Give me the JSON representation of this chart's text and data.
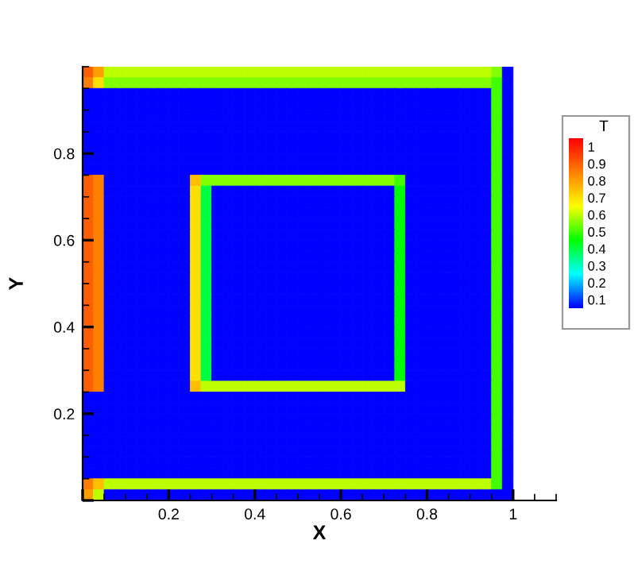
{
  "chart_data": {
    "type": "heatmap",
    "xlabel": "X",
    "ylabel": "Y",
    "clabel": "T",
    "x": [
      0.0125,
      0.0375,
      0.0625,
      0.0875,
      0.1125,
      0.1375,
      0.1625,
      0.1875,
      0.2125,
      0.2375,
      0.2625,
      0.2875,
      0.3125,
      0.3375,
      0.3625,
      0.3875,
      0.4125,
      0.4375,
      0.4625,
      0.4875,
      0.5125,
      0.5375,
      0.5625,
      0.5875,
      0.6125,
      0.6375,
      0.6625,
      0.6875,
      0.7125,
      0.7375,
      0.7625,
      0.7875,
      0.8125,
      0.8375,
      0.8625,
      0.8875,
      0.9125,
      0.9375,
      0.9625,
      0.9875
    ],
    "cells": [
      [
        0.9,
        0.8,
        0.6,
        0.6,
        0.6,
        0.6,
        0.6,
        0.6,
        0.6,
        0.6,
        0.6,
        0.6,
        0.6,
        0.6,
        0.6,
        0.6,
        0.6,
        0.6,
        0.6,
        0.6,
        0.6,
        0.6,
        0.6,
        0.6,
        0.6,
        0.6,
        0.6,
        0.6,
        0.6,
        0.6,
        0.6,
        0.6,
        0.6,
        0.6,
        0.6,
        0.6,
        0.6,
        0.6,
        0.55,
        0.05
      ],
      [
        0.85,
        0.7,
        0.55,
        0.55,
        0.55,
        0.55,
        0.55,
        0.55,
        0.55,
        0.55,
        0.55,
        0.55,
        0.55,
        0.55,
        0.55,
        0.55,
        0.55,
        0.55,
        0.55,
        0.55,
        0.55,
        0.55,
        0.55,
        0.55,
        0.55,
        0.55,
        0.55,
        0.55,
        0.55,
        0.55,
        0.55,
        0.55,
        0.55,
        0.55,
        0.55,
        0.55,
        0.55,
        0.55,
        0.5,
        0.05
      ],
      [
        0.05,
        0.05,
        0.05,
        0.05,
        0.05,
        0.05,
        0.05,
        0.05,
        0.05,
        0.05,
        0.05,
        0.05,
        0.05,
        0.05,
        0.05,
        0.05,
        0.05,
        0.05,
        0.05,
        0.05,
        0.05,
        0.05,
        0.05,
        0.05,
        0.05,
        0.05,
        0.05,
        0.05,
        0.05,
        0.05,
        0.05,
        0.05,
        0.05,
        0.05,
        0.05,
        0.05,
        0.05,
        0.05,
        0.5,
        0.05
      ],
      [
        0.05,
        0.05,
        0.05,
        0.05,
        0.05,
        0.05,
        0.05,
        0.05,
        0.05,
        0.05,
        0.05,
        0.05,
        0.05,
        0.05,
        0.05,
        0.05,
        0.05,
        0.05,
        0.05,
        0.05,
        0.05,
        0.05,
        0.05,
        0.05,
        0.05,
        0.05,
        0.05,
        0.05,
        0.05,
        0.05,
        0.05,
        0.05,
        0.05,
        0.05,
        0.05,
        0.05,
        0.05,
        0.05,
        0.5,
        0.05
      ],
      [
        0.05,
        0.05,
        0.05,
        0.05,
        0.05,
        0.05,
        0.05,
        0.05,
        0.05,
        0.05,
        0.05,
        0.05,
        0.05,
        0.05,
        0.05,
        0.05,
        0.05,
        0.05,
        0.05,
        0.05,
        0.05,
        0.05,
        0.05,
        0.05,
        0.05,
        0.05,
        0.05,
        0.05,
        0.05,
        0.05,
        0.05,
        0.05,
        0.05,
        0.05,
        0.05,
        0.05,
        0.05,
        0.05,
        0.5,
        0.05
      ],
      [
        0.05,
        0.05,
        0.05,
        0.05,
        0.05,
        0.05,
        0.05,
        0.05,
        0.05,
        0.05,
        0.05,
        0.05,
        0.05,
        0.05,
        0.05,
        0.05,
        0.05,
        0.05,
        0.05,
        0.05,
        0.05,
        0.05,
        0.05,
        0.05,
        0.05,
        0.05,
        0.05,
        0.05,
        0.05,
        0.05,
        0.05,
        0.05,
        0.05,
        0.05,
        0.05,
        0.05,
        0.05,
        0.05,
        0.5,
        0.05
      ],
      [
        0.05,
        0.05,
        0.05,
        0.05,
        0.05,
        0.05,
        0.05,
        0.05,
        0.05,
        0.05,
        0.05,
        0.05,
        0.05,
        0.05,
        0.05,
        0.05,
        0.05,
        0.05,
        0.05,
        0.05,
        0.05,
        0.05,
        0.05,
        0.05,
        0.05,
        0.05,
        0.05,
        0.05,
        0.05,
        0.05,
        0.05,
        0.05,
        0.05,
        0.05,
        0.05,
        0.05,
        0.05,
        0.05,
        0.5,
        0.05
      ],
      [
        0.05,
        0.05,
        0.05,
        0.05,
        0.05,
        0.05,
        0.05,
        0.05,
        0.05,
        0.05,
        0.05,
        0.05,
        0.05,
        0.05,
        0.05,
        0.05,
        0.05,
        0.05,
        0.05,
        0.05,
        0.05,
        0.05,
        0.05,
        0.05,
        0.05,
        0.05,
        0.05,
        0.05,
        0.05,
        0.05,
        0.05,
        0.05,
        0.05,
        0.05,
        0.05,
        0.05,
        0.05,
        0.05,
        0.5,
        0.05
      ],
      [
        0.05,
        0.05,
        0.05,
        0.05,
        0.05,
        0.05,
        0.05,
        0.05,
        0.05,
        0.05,
        0.05,
        0.05,
        0.05,
        0.05,
        0.05,
        0.05,
        0.05,
        0.05,
        0.05,
        0.05,
        0.05,
        0.05,
        0.05,
        0.05,
        0.05,
        0.05,
        0.05,
        0.05,
        0.05,
        0.05,
        0.05,
        0.05,
        0.05,
        0.05,
        0.05,
        0.05,
        0.05,
        0.05,
        0.5,
        0.05
      ],
      [
        0.05,
        0.05,
        0.05,
        0.05,
        0.05,
        0.05,
        0.05,
        0.05,
        0.05,
        0.05,
        0.05,
        0.05,
        0.05,
        0.05,
        0.05,
        0.05,
        0.05,
        0.05,
        0.05,
        0.05,
        0.05,
        0.05,
        0.05,
        0.05,
        0.05,
        0.05,
        0.05,
        0.05,
        0.05,
        0.05,
        0.05,
        0.05,
        0.05,
        0.05,
        0.05,
        0.05,
        0.05,
        0.05,
        0.5,
        0.05
      ],
      [
        0.9,
        0.85,
        0.05,
        0.05,
        0.05,
        0.05,
        0.05,
        0.05,
        0.05,
        0.05,
        0.75,
        0.55,
        0.55,
        0.55,
        0.55,
        0.55,
        0.55,
        0.55,
        0.55,
        0.55,
        0.55,
        0.55,
        0.55,
        0.55,
        0.55,
        0.55,
        0.55,
        0.55,
        0.55,
        0.5,
        0.05,
        0.05,
        0.05,
        0.05,
        0.05,
        0.05,
        0.05,
        0.05,
        0.5,
        0.05
      ],
      [
        0.9,
        0.85,
        0.05,
        0.05,
        0.05,
        0.05,
        0.05,
        0.05,
        0.05,
        0.05,
        0.7,
        0.4,
        0.05,
        0.05,
        0.05,
        0.05,
        0.05,
        0.05,
        0.05,
        0.05,
        0.05,
        0.05,
        0.05,
        0.05,
        0.05,
        0.05,
        0.05,
        0.05,
        0.05,
        0.45,
        0.05,
        0.05,
        0.05,
        0.05,
        0.05,
        0.05,
        0.05,
        0.05,
        0.5,
        0.05
      ],
      [
        0.9,
        0.85,
        0.05,
        0.05,
        0.05,
        0.05,
        0.05,
        0.05,
        0.05,
        0.05,
        0.7,
        0.4,
        0.05,
        0.05,
        0.05,
        0.05,
        0.05,
        0.05,
        0.05,
        0.05,
        0.05,
        0.05,
        0.05,
        0.05,
        0.05,
        0.05,
        0.05,
        0.05,
        0.05,
        0.45,
        0.05,
        0.05,
        0.05,
        0.05,
        0.05,
        0.05,
        0.05,
        0.05,
        0.5,
        0.05
      ],
      [
        0.9,
        0.85,
        0.05,
        0.05,
        0.05,
        0.05,
        0.05,
        0.05,
        0.05,
        0.05,
        0.7,
        0.4,
        0.05,
        0.05,
        0.05,
        0.05,
        0.05,
        0.05,
        0.05,
        0.05,
        0.05,
        0.05,
        0.05,
        0.05,
        0.05,
        0.05,
        0.05,
        0.05,
        0.05,
        0.45,
        0.05,
        0.05,
        0.05,
        0.05,
        0.05,
        0.05,
        0.05,
        0.05,
        0.5,
        0.05
      ],
      [
        0.9,
        0.85,
        0.05,
        0.05,
        0.05,
        0.05,
        0.05,
        0.05,
        0.05,
        0.05,
        0.7,
        0.4,
        0.05,
        0.05,
        0.05,
        0.05,
        0.05,
        0.05,
        0.05,
        0.05,
        0.05,
        0.05,
        0.05,
        0.05,
        0.05,
        0.05,
        0.05,
        0.05,
        0.05,
        0.45,
        0.05,
        0.05,
        0.05,
        0.05,
        0.05,
        0.05,
        0.05,
        0.05,
        0.5,
        0.05
      ],
      [
        0.9,
        0.85,
        0.05,
        0.05,
        0.05,
        0.05,
        0.05,
        0.05,
        0.05,
        0.05,
        0.7,
        0.4,
        0.05,
        0.05,
        0.05,
        0.05,
        0.05,
        0.05,
        0.05,
        0.05,
        0.05,
        0.05,
        0.05,
        0.05,
        0.05,
        0.05,
        0.05,
        0.05,
        0.05,
        0.45,
        0.05,
        0.05,
        0.05,
        0.05,
        0.05,
        0.05,
        0.05,
        0.05,
        0.5,
        0.05
      ],
      [
        0.9,
        0.85,
        0.05,
        0.05,
        0.05,
        0.05,
        0.05,
        0.05,
        0.05,
        0.05,
        0.7,
        0.4,
        0.05,
        0.05,
        0.05,
        0.05,
        0.05,
        0.05,
        0.05,
        0.05,
        0.05,
        0.05,
        0.05,
        0.05,
        0.05,
        0.05,
        0.05,
        0.05,
        0.05,
        0.45,
        0.05,
        0.05,
        0.05,
        0.05,
        0.05,
        0.05,
        0.05,
        0.05,
        0.5,
        0.05
      ],
      [
        0.9,
        0.85,
        0.05,
        0.05,
        0.05,
        0.05,
        0.05,
        0.05,
        0.05,
        0.05,
        0.7,
        0.4,
        0.05,
        0.05,
        0.05,
        0.05,
        0.05,
        0.05,
        0.05,
        0.05,
        0.05,
        0.05,
        0.05,
        0.05,
        0.05,
        0.05,
        0.05,
        0.05,
        0.05,
        0.45,
        0.05,
        0.05,
        0.05,
        0.05,
        0.05,
        0.05,
        0.05,
        0.05,
        0.5,
        0.05
      ],
      [
        0.9,
        0.85,
        0.05,
        0.05,
        0.05,
        0.05,
        0.05,
        0.05,
        0.05,
        0.05,
        0.7,
        0.4,
        0.05,
        0.05,
        0.05,
        0.05,
        0.05,
        0.05,
        0.05,
        0.05,
        0.05,
        0.05,
        0.05,
        0.05,
        0.05,
        0.05,
        0.05,
        0.05,
        0.05,
        0.45,
        0.05,
        0.05,
        0.05,
        0.05,
        0.05,
        0.05,
        0.05,
        0.05,
        0.5,
        0.05
      ],
      [
        0.9,
        0.85,
        0.05,
        0.05,
        0.05,
        0.05,
        0.05,
        0.05,
        0.05,
        0.05,
        0.7,
        0.4,
        0.05,
        0.05,
        0.05,
        0.05,
        0.05,
        0.05,
        0.05,
        0.05,
        0.05,
        0.05,
        0.05,
        0.05,
        0.05,
        0.05,
        0.05,
        0.05,
        0.05,
        0.45,
        0.05,
        0.05,
        0.05,
        0.05,
        0.05,
        0.05,
        0.05,
        0.05,
        0.5,
        0.05
      ],
      [
        0.9,
        0.85,
        0.05,
        0.05,
        0.05,
        0.05,
        0.05,
        0.05,
        0.05,
        0.05,
        0.7,
        0.4,
        0.05,
        0.05,
        0.05,
        0.05,
        0.05,
        0.05,
        0.05,
        0.05,
        0.05,
        0.05,
        0.05,
        0.05,
        0.05,
        0.05,
        0.05,
        0.05,
        0.05,
        0.45,
        0.05,
        0.05,
        0.05,
        0.05,
        0.05,
        0.05,
        0.05,
        0.05,
        0.5,
        0.05
      ],
      [
        0.9,
        0.85,
        0.05,
        0.05,
        0.05,
        0.05,
        0.05,
        0.05,
        0.05,
        0.05,
        0.7,
        0.4,
        0.05,
        0.05,
        0.05,
        0.05,
        0.05,
        0.05,
        0.05,
        0.05,
        0.05,
        0.05,
        0.05,
        0.05,
        0.05,
        0.05,
        0.05,
        0.05,
        0.05,
        0.45,
        0.05,
        0.05,
        0.05,
        0.05,
        0.05,
        0.05,
        0.05,
        0.05,
        0.5,
        0.05
      ],
      [
        0.9,
        0.85,
        0.05,
        0.05,
        0.05,
        0.05,
        0.05,
        0.05,
        0.05,
        0.05,
        0.7,
        0.4,
        0.05,
        0.05,
        0.05,
        0.05,
        0.05,
        0.05,
        0.05,
        0.05,
        0.05,
        0.05,
        0.05,
        0.05,
        0.05,
        0.05,
        0.05,
        0.05,
        0.05,
        0.45,
        0.05,
        0.05,
        0.05,
        0.05,
        0.05,
        0.05,
        0.05,
        0.05,
        0.5,
        0.05
      ],
      [
        0.9,
        0.85,
        0.05,
        0.05,
        0.05,
        0.05,
        0.05,
        0.05,
        0.05,
        0.05,
        0.7,
        0.4,
        0.05,
        0.05,
        0.05,
        0.05,
        0.05,
        0.05,
        0.05,
        0.05,
        0.05,
        0.05,
        0.05,
        0.05,
        0.05,
        0.05,
        0.05,
        0.05,
        0.05,
        0.45,
        0.05,
        0.05,
        0.05,
        0.05,
        0.05,
        0.05,
        0.05,
        0.05,
        0.5,
        0.05
      ],
      [
        0.9,
        0.85,
        0.05,
        0.05,
        0.05,
        0.05,
        0.05,
        0.05,
        0.05,
        0.05,
        0.7,
        0.4,
        0.05,
        0.05,
        0.05,
        0.05,
        0.05,
        0.05,
        0.05,
        0.05,
        0.05,
        0.05,
        0.05,
        0.05,
        0.05,
        0.05,
        0.05,
        0.05,
        0.05,
        0.45,
        0.05,
        0.05,
        0.05,
        0.05,
        0.05,
        0.05,
        0.05,
        0.05,
        0.5,
        0.05
      ],
      [
        0.9,
        0.85,
        0.05,
        0.05,
        0.05,
        0.05,
        0.05,
        0.05,
        0.05,
        0.05,
        0.7,
        0.4,
        0.05,
        0.05,
        0.05,
        0.05,
        0.05,
        0.05,
        0.05,
        0.05,
        0.05,
        0.05,
        0.05,
        0.05,
        0.05,
        0.05,
        0.05,
        0.05,
        0.05,
        0.45,
        0.05,
        0.05,
        0.05,
        0.05,
        0.05,
        0.05,
        0.05,
        0.05,
        0.5,
        0.05
      ],
      [
        0.9,
        0.85,
        0.05,
        0.05,
        0.05,
        0.05,
        0.05,
        0.05,
        0.05,
        0.05,
        0.7,
        0.4,
        0.05,
        0.05,
        0.05,
        0.05,
        0.05,
        0.05,
        0.05,
        0.05,
        0.05,
        0.05,
        0.05,
        0.05,
        0.05,
        0.05,
        0.05,
        0.05,
        0.05,
        0.45,
        0.05,
        0.05,
        0.05,
        0.05,
        0.05,
        0.05,
        0.05,
        0.05,
        0.5,
        0.05
      ],
      [
        0.9,
        0.85,
        0.05,
        0.05,
        0.05,
        0.05,
        0.05,
        0.05,
        0.05,
        0.05,
        0.7,
        0.4,
        0.05,
        0.05,
        0.05,
        0.05,
        0.05,
        0.05,
        0.05,
        0.05,
        0.05,
        0.05,
        0.05,
        0.05,
        0.05,
        0.05,
        0.05,
        0.05,
        0.05,
        0.45,
        0.05,
        0.05,
        0.05,
        0.05,
        0.05,
        0.05,
        0.05,
        0.05,
        0.5,
        0.05
      ],
      [
        0.9,
        0.85,
        0.05,
        0.05,
        0.05,
        0.05,
        0.05,
        0.05,
        0.05,
        0.05,
        0.7,
        0.4,
        0.05,
        0.05,
        0.05,
        0.05,
        0.05,
        0.05,
        0.05,
        0.05,
        0.05,
        0.05,
        0.05,
        0.05,
        0.05,
        0.05,
        0.05,
        0.05,
        0.05,
        0.45,
        0.05,
        0.05,
        0.05,
        0.05,
        0.05,
        0.05,
        0.05,
        0.05,
        0.5,
        0.05
      ],
      [
        0.9,
        0.85,
        0.05,
        0.05,
        0.05,
        0.05,
        0.05,
        0.05,
        0.05,
        0.05,
        0.75,
        0.6,
        0.6,
        0.6,
        0.6,
        0.6,
        0.6,
        0.6,
        0.6,
        0.6,
        0.6,
        0.6,
        0.6,
        0.6,
        0.6,
        0.6,
        0.6,
        0.6,
        0.6,
        0.6,
        0.05,
        0.05,
        0.05,
        0.05,
        0.05,
        0.05,
        0.05,
        0.05,
        0.5,
        0.05
      ],
      [
        0.05,
        0.05,
        0.05,
        0.05,
        0.05,
        0.05,
        0.05,
        0.05,
        0.05,
        0.05,
        0.05,
        0.05,
        0.05,
        0.05,
        0.05,
        0.05,
        0.05,
        0.05,
        0.05,
        0.05,
        0.05,
        0.05,
        0.05,
        0.05,
        0.05,
        0.05,
        0.05,
        0.05,
        0.05,
        0.05,
        0.05,
        0.05,
        0.05,
        0.05,
        0.05,
        0.05,
        0.05,
        0.05,
        0.5,
        0.05
      ],
      [
        0.05,
        0.05,
        0.05,
        0.05,
        0.05,
        0.05,
        0.05,
        0.05,
        0.05,
        0.05,
        0.05,
        0.05,
        0.05,
        0.05,
        0.05,
        0.05,
        0.05,
        0.05,
        0.05,
        0.05,
        0.05,
        0.05,
        0.05,
        0.05,
        0.05,
        0.05,
        0.05,
        0.05,
        0.05,
        0.05,
        0.05,
        0.05,
        0.05,
        0.05,
        0.05,
        0.05,
        0.05,
        0.05,
        0.5,
        0.05
      ],
      [
        0.05,
        0.05,
        0.05,
        0.05,
        0.05,
        0.05,
        0.05,
        0.05,
        0.05,
        0.05,
        0.05,
        0.05,
        0.05,
        0.05,
        0.05,
        0.05,
        0.05,
        0.05,
        0.05,
        0.05,
        0.05,
        0.05,
        0.05,
        0.05,
        0.05,
        0.05,
        0.05,
        0.05,
        0.05,
        0.05,
        0.05,
        0.05,
        0.05,
        0.05,
        0.05,
        0.05,
        0.05,
        0.05,
        0.5,
        0.05
      ],
      [
        0.05,
        0.05,
        0.05,
        0.05,
        0.05,
        0.05,
        0.05,
        0.05,
        0.05,
        0.05,
        0.05,
        0.05,
        0.05,
        0.05,
        0.05,
        0.05,
        0.05,
        0.05,
        0.05,
        0.05,
        0.05,
        0.05,
        0.05,
        0.05,
        0.05,
        0.05,
        0.05,
        0.05,
        0.05,
        0.05,
        0.05,
        0.05,
        0.05,
        0.05,
        0.05,
        0.05,
        0.05,
        0.05,
        0.5,
        0.05
      ],
      [
        0.05,
        0.05,
        0.05,
        0.05,
        0.05,
        0.05,
        0.05,
        0.05,
        0.05,
        0.05,
        0.05,
        0.05,
        0.05,
        0.05,
        0.05,
        0.05,
        0.05,
        0.05,
        0.05,
        0.05,
        0.05,
        0.05,
        0.05,
        0.05,
        0.05,
        0.05,
        0.05,
        0.05,
        0.05,
        0.05,
        0.05,
        0.05,
        0.05,
        0.05,
        0.05,
        0.05,
        0.05,
        0.05,
        0.5,
        0.05
      ],
      [
        0.05,
        0.05,
        0.05,
        0.05,
        0.05,
        0.05,
        0.05,
        0.05,
        0.05,
        0.05,
        0.05,
        0.05,
        0.05,
        0.05,
        0.05,
        0.05,
        0.05,
        0.05,
        0.05,
        0.05,
        0.05,
        0.05,
        0.05,
        0.05,
        0.05,
        0.05,
        0.05,
        0.05,
        0.05,
        0.05,
        0.05,
        0.05,
        0.05,
        0.05,
        0.05,
        0.05,
        0.05,
        0.05,
        0.5,
        0.05
      ],
      [
        0.05,
        0.05,
        0.05,
        0.05,
        0.05,
        0.05,
        0.05,
        0.05,
        0.05,
        0.05,
        0.05,
        0.05,
        0.05,
        0.05,
        0.05,
        0.05,
        0.05,
        0.05,
        0.05,
        0.05,
        0.05,
        0.05,
        0.05,
        0.05,
        0.05,
        0.05,
        0.05,
        0.05,
        0.05,
        0.05,
        0.05,
        0.05,
        0.05,
        0.05,
        0.05,
        0.05,
        0.05,
        0.05,
        0.5,
        0.05
      ],
      [
        0.05,
        0.05,
        0.05,
        0.05,
        0.05,
        0.05,
        0.05,
        0.05,
        0.05,
        0.05,
        0.05,
        0.05,
        0.05,
        0.05,
        0.05,
        0.05,
        0.05,
        0.05,
        0.05,
        0.05,
        0.05,
        0.05,
        0.05,
        0.05,
        0.05,
        0.05,
        0.05,
        0.05,
        0.05,
        0.05,
        0.05,
        0.05,
        0.05,
        0.05,
        0.05,
        0.05,
        0.05,
        0.05,
        0.5,
        0.05
      ],
      [
        0.85,
        0.75,
        0.6,
        0.6,
        0.6,
        0.6,
        0.6,
        0.6,
        0.6,
        0.6,
        0.6,
        0.6,
        0.6,
        0.6,
        0.6,
        0.6,
        0.6,
        0.6,
        0.6,
        0.6,
        0.6,
        0.6,
        0.6,
        0.6,
        0.6,
        0.6,
        0.6,
        0.6,
        0.6,
        0.6,
        0.6,
        0.6,
        0.6,
        0.6,
        0.6,
        0.6,
        0.6,
        0.6,
        0.5,
        0.05
      ],
      [
        0.8,
        0.6,
        0.05,
        0.05,
        0.05,
        0.05,
        0.05,
        0.05,
        0.05,
        0.05,
        0.05,
        0.05,
        0.05,
        0.05,
        0.05,
        0.05,
        0.05,
        0.05,
        0.05,
        0.05,
        0.05,
        0.05,
        0.05,
        0.05,
        0.05,
        0.05,
        0.05,
        0.05,
        0.05,
        0.05,
        0.05,
        0.05,
        0.05,
        0.05,
        0.05,
        0.05,
        0.05,
        0.05,
        0.05,
        0.05
      ]
    ],
    "xlim": [
      0,
      1.1
    ],
    "xticks": [
      {
        "value": 0,
        "label": null
      },
      0.2,
      0.4,
      0.6,
      0.8,
      1
    ],
    "ylim": [
      0,
      1
    ],
    "yticks": [
      {
        "value": 0,
        "label": null
      },
      0.2,
      0.4,
      0.6,
      0.8
    ],
    "clim": [
      0.05,
      1.05
    ],
    "cticks": [
      0.1,
      0.2,
      0.3,
      0.4,
      0.5,
      0.6,
      0.7,
      0.8,
      0.9,
      1
    ]
  }
}
